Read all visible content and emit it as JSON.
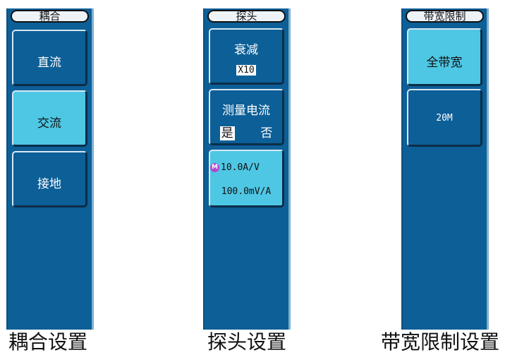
{
  "coupling": {
    "title": "耦合",
    "items": [
      {
        "label": "直流",
        "active": false
      },
      {
        "label": "交流",
        "active": true
      },
      {
        "label": "接地",
        "active": false
      }
    ],
    "caption": "耦合设置"
  },
  "probe": {
    "title": "探头",
    "attenuation": {
      "label": "衰减",
      "value": "X10"
    },
    "measure_current": {
      "label": "测量电流",
      "yes": "是",
      "no": "否",
      "selected": "是"
    },
    "ratio": {
      "icon": "M",
      "line1": "10.0A/V",
      "line2": "100.0mV/A"
    },
    "caption": "探头设置"
  },
  "bandwidth": {
    "title": "带宽限制",
    "items": [
      {
        "label": "全带宽",
        "active": true
      },
      {
        "label": "20M",
        "active": false
      }
    ],
    "caption": "带宽限制设置"
  },
  "colors": {
    "panel_bg": "#0d5f97",
    "active_bg": "#4ec7e4",
    "m_icon": "#b14ad0"
  }
}
